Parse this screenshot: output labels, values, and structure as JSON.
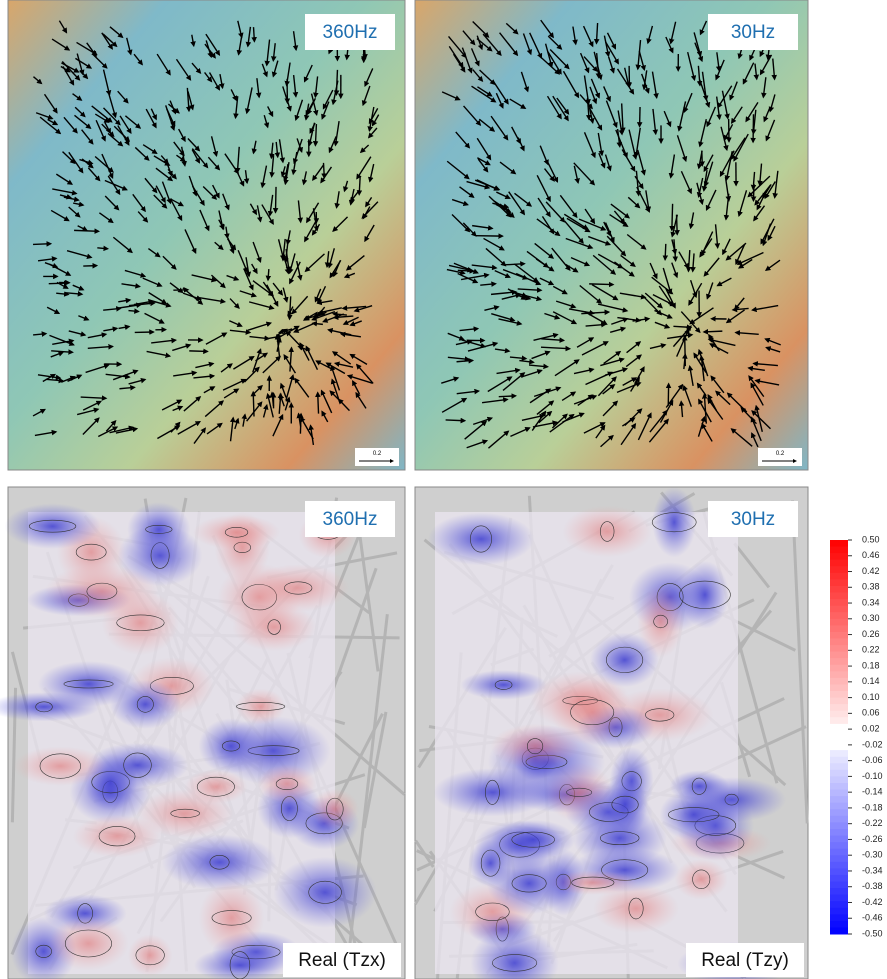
{
  "panels": [
    {
      "label": "360Hz",
      "scale_label": "0.2"
    },
    {
      "label": "30Hz",
      "scale_label": "0.2"
    },
    {
      "label": "360Hz",
      "component": "Real (Tzx)"
    },
    {
      "label": "30Hz",
      "component": "Real (Tzy)"
    }
  ],
  "colorbar": {
    "ticks": [
      {
        "value": 0.5,
        "label": "0.50"
      },
      {
        "value": 0.46,
        "label": "0.46"
      },
      {
        "value": 0.42,
        "label": "0.42"
      },
      {
        "value": 0.38,
        "label": "0.38"
      },
      {
        "value": 0.34,
        "label": "0.34"
      },
      {
        "value": 0.3,
        "label": "0.30"
      },
      {
        "value": 0.26,
        "label": "0.26"
      },
      {
        "value": 0.22,
        "label": "0.22"
      },
      {
        "value": 0.18,
        "label": "0.18"
      },
      {
        "value": 0.14,
        "label": "0.14"
      },
      {
        "value": 0.1,
        "label": "0.10"
      },
      {
        "value": 0.06,
        "label": "0.06"
      },
      {
        "value": 0.02,
        "label": "0.02"
      },
      {
        "value": -0.02,
        "label": "-0.02"
      },
      {
        "value": -0.06,
        "label": "-0.06"
      },
      {
        "value": -0.1,
        "label": "-0.10"
      },
      {
        "value": -0.14,
        "label": "-0.14"
      },
      {
        "value": -0.18,
        "label": "-0.18"
      },
      {
        "value": -0.22,
        "label": "-0.22"
      },
      {
        "value": -0.26,
        "label": "-0.26"
      },
      {
        "value": -0.3,
        "label": "-0.30"
      },
      {
        "value": -0.34,
        "label": "-0.34"
      },
      {
        "value": -0.38,
        "label": "-0.38"
      },
      {
        "value": -0.42,
        "label": "-0.42"
      },
      {
        "value": -0.46,
        "label": "-0.46"
      },
      {
        "value": -0.5,
        "label": "-0.50"
      }
    ],
    "range": [
      -0.5,
      0.5
    ]
  }
}
